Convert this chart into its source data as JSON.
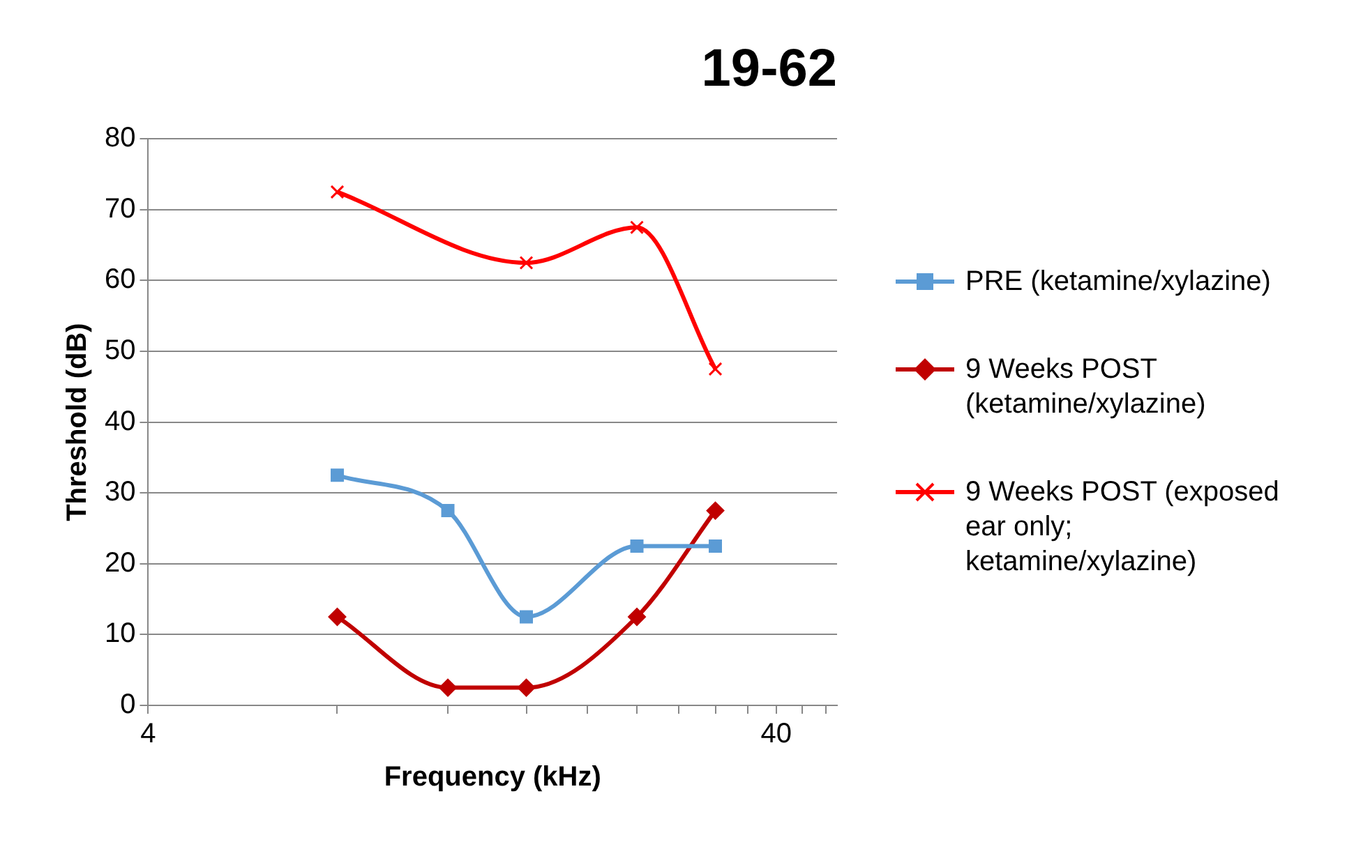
{
  "chart_data": {
    "type": "line",
    "title": "19-62",
    "xlabel": "Frequency (kHz)",
    "ylabel": "Threshold (dB)",
    "x": [
      8,
      12,
      16,
      24,
      32
    ],
    "log": "x",
    "xlim": [
      4,
      50
    ],
    "xticks": [
      4,
      {
        "value": 8,
        "label": null
      },
      {
        "value": 12,
        "label": null
      },
      {
        "value": 16,
        "label": null
      },
      {
        "value": 20,
        "label": null
      },
      {
        "value": 24,
        "label": null
      },
      {
        "value": 28,
        "label": null
      },
      {
        "value": 32,
        "label": null
      },
      {
        "value": 36,
        "label": null
      },
      40,
      {
        "value": 44,
        "label": null
      },
      {
        "value": 48,
        "label": null
      }
    ],
    "ylim": [
      0,
      80
    ],
    "yticks": [
      0,
      10,
      20,
      30,
      40,
      50,
      60,
      70,
      80
    ],
    "grid": "y",
    "legend": "right",
    "series": [
      {
        "name": "PRE (ketamine/xylazine)",
        "color": "#5b9bd5",
        "marker": "square",
        "values": [
          32.5,
          27.5,
          12.5,
          22.5,
          22.5
        ]
      },
      {
        "name": "9 Weeks POST (ketamine/xylazine)",
        "color": "#c00000",
        "marker": "diamond",
        "values": [
          12.5,
          2.5,
          2.5,
          12.5,
          27.5
        ]
      },
      {
        "name": "9 Weeks POST (exposed ear only; ketamine/xylazine)",
        "color": "#ff0000",
        "marker": "cross",
        "values": [
          72.5,
          null,
          62.5,
          67.5,
          47.5
        ]
      }
    ]
  }
}
